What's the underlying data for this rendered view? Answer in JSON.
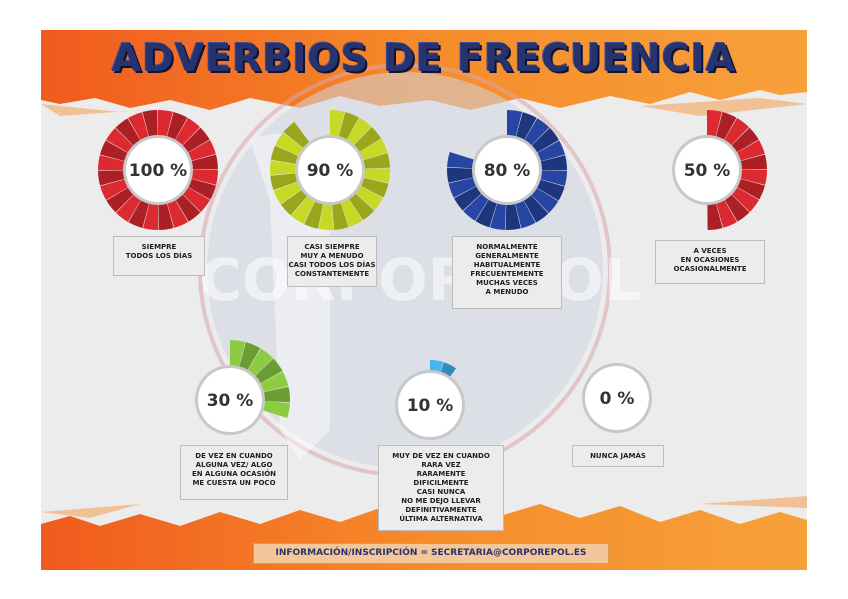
{
  "title": "ADVERBIOS DE FRECUENCIA",
  "watermark": "CORPOREPOL",
  "colors": {
    "orange": "#f47c20",
    "navy": "#27336e",
    "red": "#c9252c",
    "yellowgreen": "#b5c422",
    "blue": "#233f93",
    "green": "#7fb93b",
    "cyan": "#3aa6d8"
  },
  "items": [
    {
      "percent_label": "100 %",
      "value": 100,
      "color": "#c9252c",
      "lines": [
        "SIEMPRE",
        "TODOS LOS DÍAS"
      ]
    },
    {
      "percent_label": "90 %",
      "value": 90,
      "color": "#b5c422",
      "lines": [
        "CASI SIEMPRE",
        "MUY A MENUDO",
        "CASI TODOS LOS DÍAS",
        "CONSTANTEMENTE"
      ]
    },
    {
      "percent_label": "80 %",
      "value": 80,
      "color": "#233f93",
      "lines": [
        "NORMALMENTE",
        "GENERALMENTE",
        "HABITUALMENTE",
        "FRECUENTEMENTE",
        "MUCHAS VECES",
        "A MENUDO"
      ]
    },
    {
      "percent_label": "50 %",
      "value": 50,
      "color": "#c9252c",
      "lines": [
        "A VECES",
        "EN OCASIONES",
        "OCASIONALMENTE"
      ]
    },
    {
      "percent_label": "30 %",
      "value": 30,
      "color": "#7fb93b",
      "lines": [
        "DE VEZ EN CUANDO",
        "ALGUNA VEZ/ ALGO",
        "EN ALGUNA OCASIÓN",
        "ME CUESTA UN POCO"
      ]
    },
    {
      "percent_label": "10 %",
      "value": 10,
      "color": "#3aa6d8",
      "lines": [
        "MUY DE VEZ EN CUANDO",
        "RARA VEZ",
        "RARAMENTE",
        "DIFICILMENTE",
        "CASI NUNCA",
        "NO ME DEJO LLEVAR",
        "DEFINITIVAMENTE",
        "ÚLTIMA ALTERNATIVA"
      ]
    },
    {
      "percent_label": "0 %",
      "value": 0,
      "color": "#999999",
      "lines": [
        "NUNCA JAMÁS"
      ]
    }
  ],
  "footer": {
    "label": "INFORMACIÓN/INSCRIPCIÓN",
    "separator": "=",
    "email": "SECRETARIA@CORPOREPOL.ES"
  }
}
